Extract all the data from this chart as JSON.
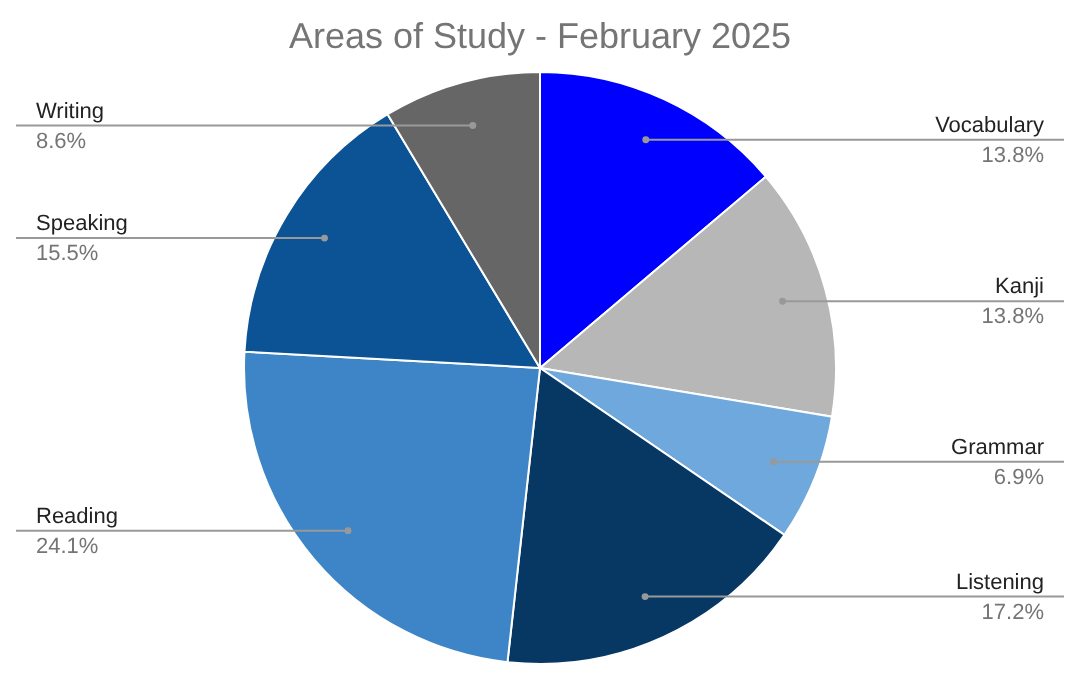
{
  "chart_data": {
    "type": "pie",
    "title": "Areas of Study - February 2025",
    "categories": [
      "Vocabulary",
      "Kanji",
      "Grammar",
      "Listening",
      "Reading",
      "Speaking",
      "Writing"
    ],
    "values": [
      13.8,
      13.8,
      6.9,
      17.2,
      24.1,
      15.5,
      8.6
    ],
    "value_labels": [
      "13.8%",
      "13.8%",
      "6.9%",
      "17.2%",
      "24.1%",
      "15.5%",
      "8.6%"
    ],
    "colors": [
      "#0000ff",
      "#b7b7b7",
      "#6fa8dc",
      "#073763",
      "#3d85c6",
      "#0b5394",
      "#666666"
    ],
    "legend": false
  }
}
